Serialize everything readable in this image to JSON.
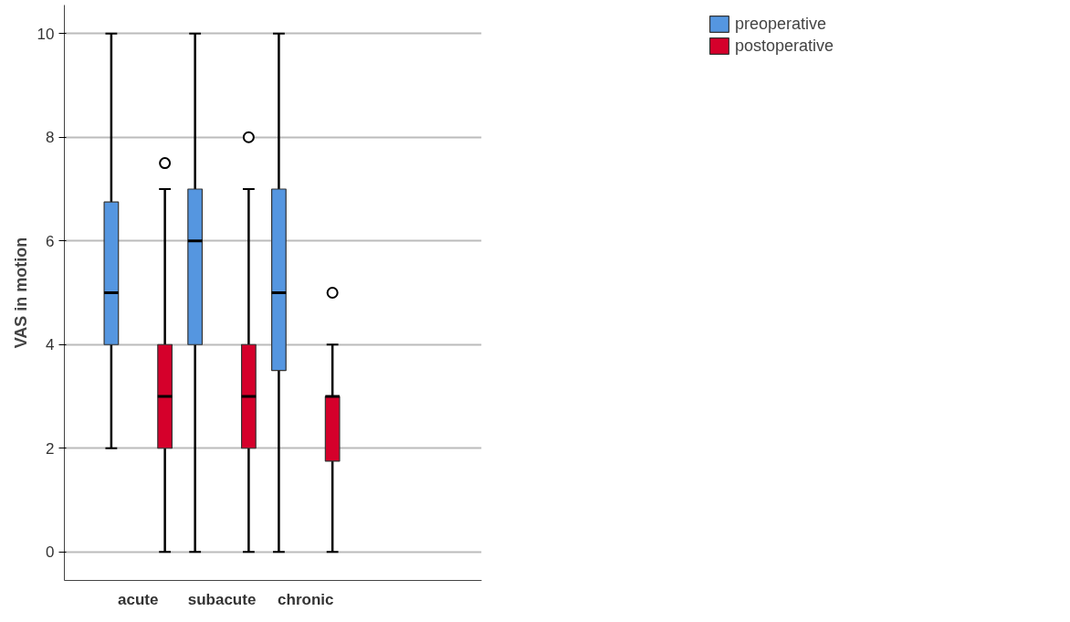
{
  "chart_data": {
    "type": "box",
    "ylabel": "VAS in motion",
    "categories": [
      "acute",
      "subacute",
      "chronic"
    ],
    "ylim": [
      -0.55,
      10.55
    ],
    "yticks": [
      0,
      2,
      4,
      6,
      8,
      10
    ],
    "grid": "y",
    "legend": "top right",
    "series": [
      {
        "name": "preoperative",
        "color": "#5596e0",
        "boxes": [
          {
            "low": 2,
            "q1": 4,
            "median": 5,
            "q3": 6.75,
            "high": 10
          },
          {
            "low": 0,
            "q1": 4,
            "median": 6,
            "q3": 7,
            "high": 10
          },
          {
            "low": 0,
            "q1": 3.5,
            "median": 5,
            "q3": 7,
            "high": 10
          }
        ]
      },
      {
        "name": "postoperative",
        "color": "#d5002b",
        "boxes": [
          {
            "low": 0,
            "q1": 2,
            "median": 3,
            "q3": 4,
            "high": 7,
            "outliers": [
              7.5
            ]
          },
          {
            "low": 0,
            "q1": 2,
            "median": 3,
            "q3": 4,
            "high": 7,
            "outliers": [
              8
            ]
          },
          {
            "low": 0,
            "q1": 1.75,
            "median": 3,
            "q3": 3,
            "high": 4,
            "outliers": [
              5
            ]
          }
        ]
      }
    ]
  }
}
